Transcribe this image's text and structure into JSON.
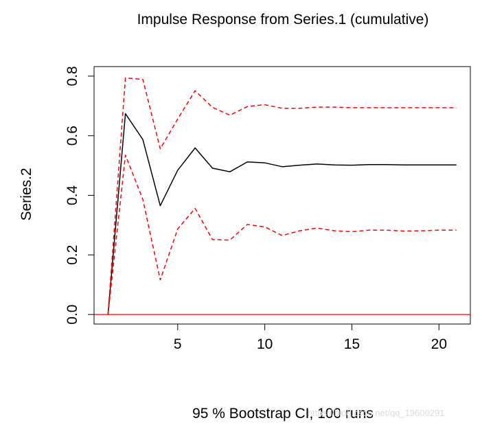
{
  "chart_data": {
    "type": "line",
    "title": "Impulse Response from Series.1 (cumulative)",
    "xlabel": "95 % Bootstrap CI, 100 runs",
    "ylabel": "Series.2",
    "xlim": [
      0.2,
      21.8
    ],
    "ylim": [
      -0.032,
      0.832
    ],
    "x_ticks": [
      5,
      10,
      15,
      20
    ],
    "y_ticks": [
      0.0,
      0.2,
      0.4,
      0.6,
      0.8
    ],
    "x_tick_labels": [
      "5",
      "10",
      "15",
      "20"
    ],
    "y_tick_labels": [
      "0.0",
      "0.2",
      "0.4",
      "0.6",
      "0.8"
    ],
    "grid": false,
    "legend": "none",
    "x": [
      1,
      2,
      3,
      4,
      5,
      6,
      7,
      8,
      9,
      10,
      11,
      12,
      13,
      14,
      15,
      16,
      17,
      18,
      19,
      20,
      21
    ],
    "reference_line": {
      "y": 0.0,
      "color": "#ff0000"
    },
    "series": [
      {
        "role": "estimate",
        "color": "#000000",
        "dash": "solid",
        "values": [
          0.0,
          0.674,
          0.587,
          0.365,
          0.484,
          0.559,
          0.491,
          0.479,
          0.512,
          0.509,
          0.496,
          0.501,
          0.505,
          0.502,
          0.501,
          0.503,
          0.503,
          0.502,
          0.502,
          0.502,
          0.502
        ]
      },
      {
        "role": "upper",
        "color": "#ff0000",
        "dash": "dashed",
        "values": [
          0.0,
          0.794,
          0.789,
          0.556,
          0.656,
          0.751,
          0.695,
          0.669,
          0.698,
          0.704,
          0.692,
          0.692,
          0.696,
          0.696,
          0.694,
          0.694,
          0.694,
          0.694,
          0.694,
          0.694,
          0.694
        ]
      },
      {
        "role": "lower",
        "color": "#ff0000",
        "dash": "dashed",
        "values": [
          0.0,
          0.535,
          0.386,
          0.116,
          0.287,
          0.356,
          0.251,
          0.25,
          0.302,
          0.294,
          0.265,
          0.281,
          0.29,
          0.281,
          0.278,
          0.283,
          0.283,
          0.28,
          0.281,
          0.283,
          0.283
        ]
      }
    ]
  },
  "watermark": "https://blog.csdn.net/qq_19600291"
}
